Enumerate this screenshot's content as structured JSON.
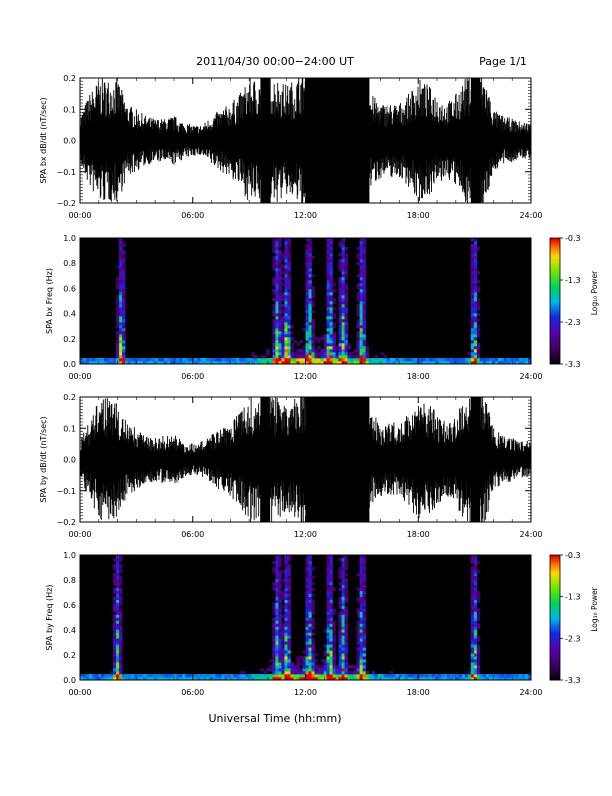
{
  "header": {
    "title": "2011/04/30  00:00−24:00 UT",
    "page_label": "Page 1/1"
  },
  "xlabel": "Universal Time (hh:mm)",
  "colorbar": {
    "label": "Log₁₀ Power",
    "ticks": [
      "-0.3",
      "-1.3",
      "-2.3",
      "-3.3"
    ],
    "range": [
      -3.3,
      -0.3
    ]
  },
  "chart_data": [
    {
      "type": "line",
      "ylabel": "SPA bx dB/dt (nT/sec)",
      "xlim": [
        0,
        24
      ],
      "ylim": [
        -0.2,
        0.2
      ],
      "x_ticks": [
        "00:00",
        "06:00",
        "12:00",
        "18:00",
        "24:00"
      ],
      "y_ticks": [
        "0.2",
        "0.1",
        "0.0",
        "−0.1",
        "−0.2"
      ],
      "envelope_hours": [
        0,
        0.5,
        1,
        1.5,
        2,
        2.5,
        3,
        3.5,
        4,
        4.5,
        5,
        5.5,
        6,
        6.5,
        7,
        7.5,
        8,
        8.5,
        9,
        9.5,
        10,
        10.5,
        11,
        11.5,
        12,
        12.5,
        13,
        13.5,
        14,
        14.5,
        15,
        15.5,
        16,
        16.5,
        17,
        17.5,
        18,
        18.5,
        19,
        19.5,
        20,
        20.5,
        21,
        21.5,
        22,
        22.5,
        23,
        23.5,
        24
      ],
      "envelope_amplitude": [
        0.08,
        0.15,
        0.2,
        0.2,
        0.2,
        0.12,
        0.1,
        0.08,
        0.07,
        0.07,
        0.08,
        0.06,
        0.05,
        0.05,
        0.08,
        0.1,
        0.12,
        0.15,
        0.2,
        0.2,
        0.22,
        0.2,
        0.18,
        0.2,
        0.25,
        0.25,
        0.25,
        0.25,
        0.25,
        0.25,
        0.22,
        0.15,
        0.12,
        0.12,
        0.12,
        0.15,
        0.2,
        0.18,
        0.15,
        0.12,
        0.15,
        0.2,
        0.25,
        0.22,
        0.1,
        0.08,
        0.07,
        0.06,
        0.06
      ]
    },
    {
      "type": "heatmap",
      "ylabel": "SPA bx Freq (Hz)",
      "xlim": [
        0,
        24
      ],
      "ylim": [
        0,
        1.0
      ],
      "x_ticks": [
        "00:00",
        "06:00",
        "12:00",
        "18:00",
        "24:00"
      ],
      "y_ticks": [
        "1.0",
        "0.8",
        "0.6",
        "0.4",
        "0.2",
        "0.0"
      ],
      "z_label": "Log₁₀ Power",
      "z_range": [
        -3.3,
        -0.3
      ],
      "bright_hours": [
        2.2,
        10.5,
        11.0,
        12.2,
        13.3,
        14.0,
        15.0,
        21.0
      ]
    },
    {
      "type": "line",
      "ylabel": "SPA by dB/dt (nT/sec)",
      "xlim": [
        0,
        24
      ],
      "ylim": [
        -0.2,
        0.2
      ],
      "x_ticks": [
        "00:00",
        "06:00",
        "12:00",
        "18:00",
        "24:00"
      ],
      "y_ticks": [
        "0.2",
        "0.1",
        "0.0",
        "−0.1",
        "−0.2"
      ],
      "envelope_hours": [
        0,
        0.5,
        1,
        1.5,
        2,
        2.5,
        3,
        3.5,
        4,
        4.5,
        5,
        5.5,
        6,
        6.5,
        7,
        7.5,
        8,
        8.5,
        9,
        9.5,
        10,
        10.5,
        11,
        11.5,
        12,
        12.5,
        13,
        13.5,
        14,
        14.5,
        15,
        15.5,
        16,
        16.5,
        17,
        17.5,
        18,
        18.5,
        19,
        19.5,
        20,
        20.5,
        21,
        21.5,
        22,
        22.5,
        23,
        23.5,
        24
      ],
      "envelope_amplitude": [
        0.07,
        0.12,
        0.2,
        0.2,
        0.18,
        0.12,
        0.1,
        0.08,
        0.07,
        0.08,
        0.08,
        0.06,
        0.05,
        0.06,
        0.08,
        0.1,
        0.12,
        0.15,
        0.2,
        0.2,
        0.22,
        0.2,
        0.18,
        0.2,
        0.25,
        0.25,
        0.25,
        0.25,
        0.25,
        0.25,
        0.2,
        0.15,
        0.12,
        0.12,
        0.12,
        0.15,
        0.2,
        0.18,
        0.15,
        0.12,
        0.15,
        0.2,
        0.25,
        0.22,
        0.1,
        0.08,
        0.07,
        0.06,
        0.06
      ]
    },
    {
      "type": "heatmap",
      "ylabel": "SPA by Freq (Hz)",
      "xlim": [
        0,
        24
      ],
      "ylim": [
        0,
        1.0
      ],
      "x_ticks": [
        "00:00",
        "06:00",
        "12:00",
        "18:00",
        "24:00"
      ],
      "y_ticks": [
        "1.0",
        "0.8",
        "0.6",
        "0.4",
        "0.2",
        "0.0"
      ],
      "z_label": "Log₁₀ Power",
      "z_range": [
        -3.3,
        -0.3
      ],
      "bright_hours": [
        2.0,
        10.5,
        11.0,
        12.2,
        13.3,
        14.0,
        15.0,
        21.0
      ]
    }
  ]
}
